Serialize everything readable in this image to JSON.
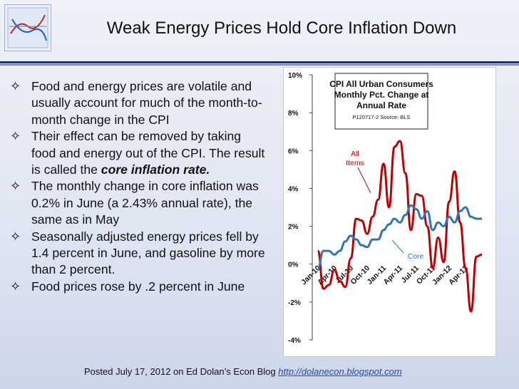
{
  "header": {
    "title": "Weak Energy Prices Hold Core Inflation Down"
  },
  "bullets": [
    {
      "pre": "Food and energy prices are volatile and usually account for much of the month-to-month change in the CPI",
      "emph": "",
      "post": ""
    },
    {
      "pre": "Their effect can be removed by taking food and energy out of the CPI. The result is called the ",
      "emph": "core inflation rate.",
      "post": ""
    },
    {
      "pre": "The monthly change in core inflation was 0.2% in June (a 2.43% annual rate), the same as in May",
      "emph": "",
      "post": ""
    },
    {
      "pre": "Seasonally adjusted energy prices fell by 1.4 percent in June, and gasoline by more than 2 percent.",
      "emph": "",
      "post": ""
    },
    {
      "pre": "Food prices rose by .2 percent in June",
      "emph": "",
      "post": ""
    }
  ],
  "footer": {
    "text": "Posted July 17, 2012 on Ed Dolan’s Econ Blog ",
    "link": "http://dolanecon.blogspot.com"
  },
  "chart_data": {
    "type": "line",
    "title_lines": [
      "CPI All Urban Consumers",
      "Monthly Pct. Change at",
      "Annual Rate"
    ],
    "source": "P120717-2 Source: BLS",
    "ylim": [
      -4,
      10
    ],
    "yticks": [
      -4,
      -2,
      0,
      2,
      4,
      6,
      8,
      10
    ],
    "ytick_labels": [
      "-4%",
      "-2%",
      "0%",
      "2%",
      "4%",
      "6%",
      "8%",
      "10%"
    ],
    "x_tick_labels": [
      "Jan-10",
      "Apr-10",
      "Jul-10",
      "Oct-10",
      "Jan-11",
      "Apr-11",
      "Jul-11",
      "Oct-11",
      "Jan-12",
      "Apr-12"
    ],
    "x_tick_index": [
      0,
      3,
      6,
      9,
      12,
      15,
      18,
      21,
      24,
      27
    ],
    "colors": {
      "all": "#c00000",
      "core": "#2e75b6"
    },
    "series": [
      {
        "name": "All Items",
        "values": [
          0.7,
          -1.3,
          -1.1,
          -0.3,
          -0.9,
          -1.2,
          0.3,
          2.4,
          2.3,
          1.6,
          2.5,
          3.4,
          5.3,
          3.0,
          6.2,
          6.5,
          4.8,
          1.8,
          3.7,
          3.6,
          2.0,
          -0.2,
          1.4,
          0.1,
          3.3,
          4.9,
          2.2,
          -0.2,
          -2.5,
          0.4,
          0.5
        ]
      },
      {
        "name": "Core",
        "values": [
          -0.2,
          0.7,
          0.7,
          0.5,
          0.7,
          1.2,
          1.5,
          1.3,
          1.0,
          0.9,
          1.3,
          1.3,
          1.8,
          2.1,
          2.4,
          2.2,
          2.6,
          3.1,
          2.9,
          2.4,
          2.8,
          1.8,
          2.2,
          2.0,
          2.5,
          2.2,
          2.8,
          3.0,
          2.5,
          2.4,
          2.4
        ]
      }
    ],
    "annotations": [
      {
        "text": "All",
        "color": "#c00000"
      },
      {
        "text": "Items",
        "color": "#c00000"
      },
      {
        "text": "Core",
        "color": "#2e75b6"
      }
    ]
  }
}
